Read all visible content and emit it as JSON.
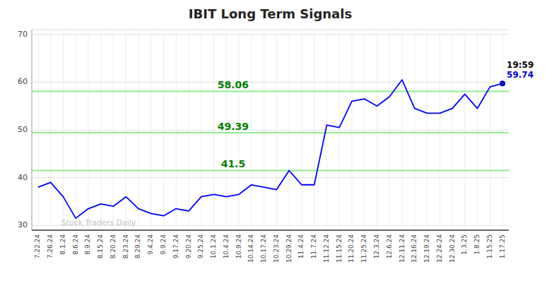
{
  "chart_data": {
    "type": "line",
    "title": "IBIT Long Term Signals",
    "categories": [
      "7.22.24",
      "7.26.24",
      "8.1.24",
      "8.6.24",
      "8.9.24",
      "8.15.24",
      "8.20.24",
      "8.23.24",
      "8.29.24",
      "9.4.24",
      "9.9.24",
      "9.17.24",
      "9.20.24",
      "9.25.24",
      "10.1.24",
      "10.4.24",
      "10.9.24",
      "10.14.24",
      "10.17.24",
      "10.23.24",
      "10.29.24",
      "11.4.24",
      "11.7.24",
      "11.12.24",
      "11.15.24",
      "11.20.24",
      "11.25.24",
      "12.3.24",
      "12.6.24",
      "12.11.24",
      "12.16.24",
      "12.19.24",
      "12.24.24",
      "12.30.24",
      "1.3.25",
      "1.8.25",
      "1.15.25",
      "1.17.25"
    ],
    "values": [
      38.0,
      39.0,
      36.0,
      31.5,
      33.5,
      34.5,
      34.0,
      36.0,
      33.5,
      32.5,
      32.0,
      33.5,
      33.0,
      36.0,
      36.5,
      36.0,
      36.5,
      38.5,
      38.0,
      37.5,
      41.5,
      38.5,
      38.5,
      51.0,
      50.5,
      56.0,
      56.5,
      55.0,
      57.0,
      60.5,
      54.5,
      53.5,
      53.5,
      54.5,
      57.5,
      54.5,
      59.0,
      59.74
    ],
    "color": "#0000ff",
    "ylim": [
      29,
      71
    ],
    "yticks": [
      30,
      40,
      50,
      60,
      70
    ],
    "grid": true,
    "hlines": [
      {
        "value": 58.06,
        "label": "58.06",
        "color": "#90ee90",
        "label_color": "#008000"
      },
      {
        "value": 49.39,
        "label": "49.39",
        "color": "#90ee90",
        "label_color": "#008000"
      },
      {
        "value": 41.5,
        "label": "41.5",
        "color": "#90ee90",
        "label_color": "#008000"
      }
    ],
    "last_point": {
      "value": 59.74,
      "time_label": "19:59",
      "value_label": "59.74",
      "color": "#0000cd"
    },
    "watermark": "Stock Traders Daily"
  }
}
